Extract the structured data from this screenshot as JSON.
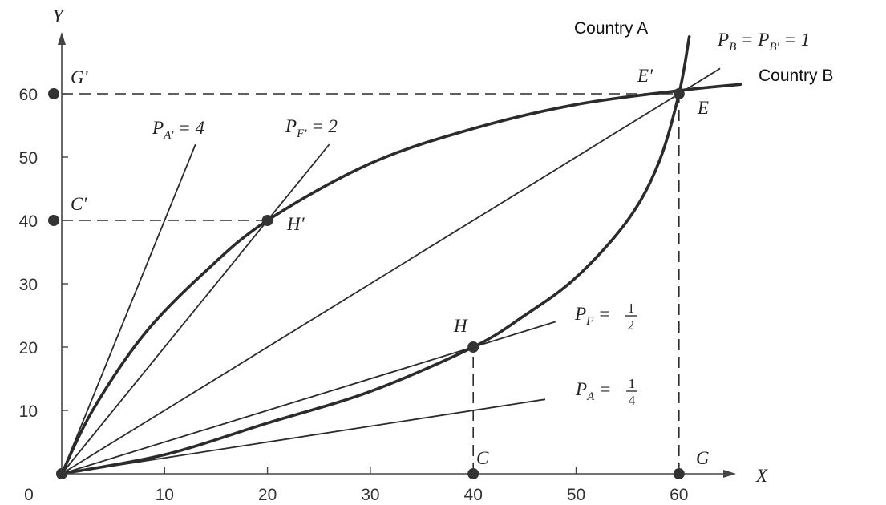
{
  "colors": {
    "ink": "#2b2b2b",
    "axis": "#444444",
    "background": "#ffffff"
  },
  "chart_data": {
    "type": "line",
    "title": "",
    "xlabel": "X",
    "ylabel": "Y",
    "origin_label": "0",
    "xlim": [
      0,
      63
    ],
    "ylim": [
      0,
      64
    ],
    "xticks": [
      "10",
      "20",
      "30",
      "40",
      "50",
      "60"
    ],
    "yticks": [
      "10",
      "20",
      "30",
      "40",
      "50",
      "60"
    ],
    "grid": false,
    "curves": [
      {
        "name": "Country A",
        "points": [
          [
            0,
            0
          ],
          [
            10,
            3
          ],
          [
            20,
            8
          ],
          [
            30,
            13
          ],
          [
            40,
            20
          ],
          [
            45,
            25
          ],
          [
            50,
            31
          ],
          [
            55,
            40
          ],
          [
            58,
            49
          ],
          [
            60,
            60
          ],
          [
            61,
            69
          ]
        ]
      },
      {
        "name": "Country B",
        "points": [
          [
            0,
            0
          ],
          [
            3,
            10
          ],
          [
            8,
            22
          ],
          [
            14,
            32
          ],
          [
            20,
            40
          ],
          [
            30,
            49
          ],
          [
            40,
            54.5
          ],
          [
            50,
            58.3
          ],
          [
            60,
            60.5
          ],
          [
            66,
            61.5
          ]
        ]
      }
    ],
    "rays": [
      {
        "label_main": "P",
        "label_sub": "A'",
        "label_rest": " = 4",
        "slope": 4,
        "x_end": 13
      },
      {
        "label_main": "P",
        "label_sub": "F'",
        "label_rest": " = 2",
        "slope": 2,
        "x_end": 26
      },
      {
        "label_main": "P",
        "label_sub": "B",
        "label_rest": " = P",
        "label_sub2": "B'",
        "label_rest2": " = 1",
        "slope": 1,
        "x_end": 64
      },
      {
        "label_main": "P",
        "label_sub": "F",
        "label_rest": " = ",
        "frac_num": "1",
        "frac_den": "2",
        "slope": 0.5,
        "x_end": 48
      },
      {
        "label_main": "P",
        "label_sub": "A",
        "label_rest": " = ",
        "frac_num": "1",
        "frac_den": "4",
        "slope": 0.25,
        "x_end": 47
      }
    ],
    "points": [
      {
        "name": "E",
        "label_right": "E",
        "label_left": "E'",
        "x": 60,
        "y": 60
      },
      {
        "name": "H'",
        "label": "H'",
        "x": 20,
        "y": 40
      },
      {
        "name": "H",
        "label": "H",
        "x": 40,
        "y": 20
      },
      {
        "name": "G'",
        "label": "G'",
        "x": 0,
        "y": 60
      },
      {
        "name": "C'",
        "label": "C'",
        "x": 0,
        "y": 40
      },
      {
        "name": "C",
        "label": "C",
        "x": 40,
        "y": 0
      },
      {
        "name": "G",
        "label": "G",
        "x": 60,
        "y": 0
      },
      {
        "name": "O",
        "label": "",
        "x": 0,
        "y": 0
      }
    ],
    "dashed_guides": [
      {
        "from": [
          0,
          60
        ],
        "to": [
          60,
          60
        ]
      },
      {
        "from": [
          0,
          40
        ],
        "to": [
          20,
          40
        ]
      },
      {
        "from": [
          40,
          0
        ],
        "to": [
          40,
          20
        ]
      },
      {
        "from": [
          60,
          0
        ],
        "to": [
          60,
          60
        ]
      }
    ]
  }
}
